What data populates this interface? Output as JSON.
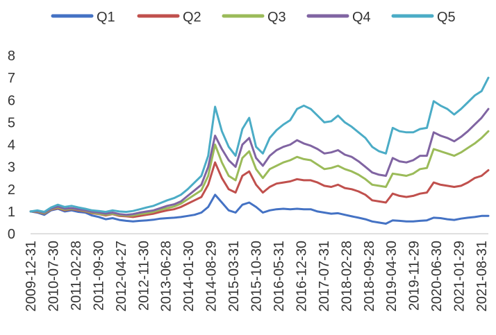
{
  "chart_data": {
    "type": "line",
    "title": "",
    "xlabel": "",
    "ylabel": "",
    "ylim": [
      0,
      8
    ],
    "yticks": [
      0,
      1,
      2,
      3,
      4,
      5,
      6,
      7,
      8
    ],
    "grid": false,
    "legend_position": "top",
    "x_tick_labels": [
      "2009-12-31",
      "2010-07-30",
      "2011-02-28",
      "2011-09-30",
      "2012-04-27",
      "2012-11-30",
      "2013-06-28",
      "2014-01-30",
      "2014-08-29",
      "2015-03-31",
      "2015-10-30",
      "2016-05-31",
      "2016-12-30",
      "2017-07-31",
      "2018-02-28",
      "2018-09-28",
      "2019-04-30",
      "2019-11-29",
      "2020-06-30",
      "2021-01-29",
      "2021-08-31"
    ],
    "x": [
      "2009-12-31",
      "2010-02",
      "2010-04",
      "2010-07-30",
      "2010-09",
      "2010-11",
      "2011-02-28",
      "2011-04",
      "2011-06",
      "2011-09-30",
      "2011-11",
      "2012-02",
      "2012-04-27",
      "2012-06",
      "2012-09",
      "2012-11-30",
      "2013-02",
      "2013-04",
      "2013-06-28",
      "2013-09",
      "2013-11",
      "2014-01-30",
      "2014-04",
      "2014-06",
      "2014-08-29",
      "2014-11",
      "2015-01",
      "2015-03-31",
      "2015-04",
      "2015-05",
      "2015-06",
      "2015-07",
      "2015-08",
      "2015-09",
      "2015-10-30",
      "2015-12",
      "2016-01",
      "2016-03",
      "2016-05-31",
      "2016-08",
      "2016-10",
      "2016-12-30",
      "2017-03",
      "2017-05",
      "2017-07-31",
      "2017-10",
      "2017-12",
      "2018-02-28",
      "2018-05",
      "2018-07",
      "2018-09-28",
      "2018-12",
      "2019-02",
      "2019-04-30",
      "2019-07",
      "2019-09",
      "2019-11-29",
      "2020-02",
      "2020-04",
      "2020-06-30",
      "2020-09",
      "2020-11",
      "2021-01-29",
      "2021-04",
      "2021-06",
      "2021-08-31",
      "2021-10",
      "2021-12"
    ],
    "series": [
      {
        "name": "Q1",
        "color": "#4472C4",
        "values": [
          1.0,
          0.95,
          0.85,
          1.05,
          1.12,
          1.0,
          1.05,
          0.98,
          0.95,
          0.82,
          0.75,
          0.65,
          0.7,
          0.62,
          0.58,
          0.55,
          0.58,
          0.6,
          0.63,
          0.68,
          0.7,
          0.72,
          0.75,
          0.8,
          0.85,
          0.95,
          1.2,
          1.75,
          1.4,
          1.05,
          0.95,
          1.3,
          1.4,
          1.2,
          0.95,
          1.05,
          1.1,
          1.12,
          1.1,
          1.12,
          1.1,
          1.1,
          1.0,
          0.95,
          0.9,
          0.92,
          0.85,
          0.78,
          0.72,
          0.65,
          0.55,
          0.5,
          0.45,
          0.6,
          0.58,
          0.55,
          0.55,
          0.58,
          0.6,
          0.72,
          0.7,
          0.65,
          0.62,
          0.68,
          0.72,
          0.75,
          0.8,
          0.8
        ]
      },
      {
        "name": "Q2",
        "color": "#C0504D",
        "values": [
          1.0,
          0.98,
          0.9,
          1.08,
          1.15,
          1.05,
          1.1,
          1.05,
          1.0,
          0.92,
          0.88,
          0.82,
          0.88,
          0.8,
          0.78,
          0.75,
          0.8,
          0.85,
          0.9,
          0.98,
          1.05,
          1.1,
          1.2,
          1.35,
          1.5,
          1.65,
          2.2,
          3.2,
          2.5,
          2.0,
          1.85,
          2.6,
          2.8,
          2.2,
          1.85,
          2.1,
          2.25,
          2.3,
          2.35,
          2.45,
          2.4,
          2.4,
          2.3,
          2.15,
          2.1,
          2.2,
          2.05,
          2.0,
          1.9,
          1.75,
          1.5,
          1.45,
          1.4,
          1.8,
          1.7,
          1.65,
          1.7,
          1.8,
          1.85,
          2.3,
          2.2,
          2.15,
          2.1,
          2.15,
          2.3,
          2.5,
          2.6,
          2.85
        ]
      },
      {
        "name": "Q3",
        "color": "#9BBB59",
        "values": [
          1.0,
          1.0,
          0.92,
          1.1,
          1.18,
          1.08,
          1.12,
          1.08,
          1.02,
          0.95,
          0.9,
          0.85,
          0.9,
          0.84,
          0.82,
          0.82,
          0.88,
          0.92,
          0.98,
          1.08,
          1.15,
          1.22,
          1.35,
          1.55,
          1.75,
          1.95,
          2.6,
          4.0,
          3.2,
          2.6,
          2.4,
          3.4,
          3.7,
          2.9,
          2.5,
          2.9,
          3.05,
          3.2,
          3.3,
          3.45,
          3.35,
          3.3,
          3.1,
          2.9,
          2.95,
          3.05,
          2.9,
          2.8,
          2.65,
          2.45,
          2.2,
          2.15,
          2.1,
          2.7,
          2.65,
          2.6,
          2.7,
          2.9,
          2.95,
          3.8,
          3.7,
          3.6,
          3.5,
          3.65,
          3.85,
          4.05,
          4.3,
          4.6
        ]
      },
      {
        "name": "Q4",
        "color": "#8064A2",
        "values": [
          1.0,
          1.02,
          0.95,
          1.12,
          1.22,
          1.12,
          1.15,
          1.1,
          1.05,
          0.98,
          0.95,
          0.9,
          0.95,
          0.88,
          0.85,
          0.88,
          0.95,
          1.0,
          1.05,
          1.15,
          1.25,
          1.32,
          1.45,
          1.7,
          1.95,
          2.2,
          3.0,
          4.4,
          3.8,
          3.3,
          3.0,
          4.0,
          4.3,
          3.4,
          3.05,
          3.5,
          3.75,
          3.9,
          4.0,
          4.2,
          4.05,
          3.95,
          3.8,
          3.6,
          3.65,
          3.75,
          3.55,
          3.45,
          3.25,
          3.0,
          2.75,
          2.65,
          2.6,
          3.4,
          3.25,
          3.2,
          3.3,
          3.5,
          3.5,
          4.55,
          4.4,
          4.3,
          4.15,
          4.35,
          4.6,
          4.9,
          5.2,
          5.6
        ]
      },
      {
        "name": "Q5",
        "color": "#4BACC6",
        "values": [
          1.0,
          1.05,
          0.98,
          1.18,
          1.3,
          1.2,
          1.25,
          1.18,
          1.12,
          1.05,
          1.02,
          0.98,
          1.05,
          1.0,
          0.98,
          1.02,
          1.1,
          1.18,
          1.25,
          1.38,
          1.5,
          1.6,
          1.75,
          2.0,
          2.3,
          2.6,
          3.5,
          5.7,
          4.6,
          3.9,
          3.5,
          4.7,
          5.2,
          3.9,
          3.6,
          4.3,
          4.65,
          4.9,
          5.1,
          5.6,
          5.75,
          5.6,
          5.3,
          5.0,
          5.05,
          5.3,
          5.0,
          4.8,
          4.55,
          4.3,
          3.9,
          3.7,
          3.6,
          4.75,
          4.6,
          4.55,
          4.55,
          4.7,
          4.75,
          5.95,
          5.75,
          5.6,
          5.35,
          5.6,
          5.9,
          6.2,
          6.4,
          7.0
        ]
      }
    ]
  }
}
